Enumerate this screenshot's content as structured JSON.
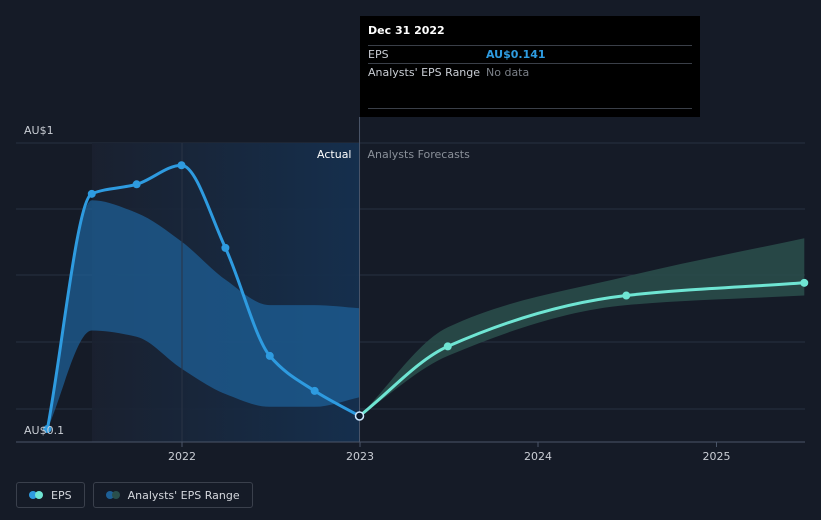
{
  "chart_data": {
    "type": "line",
    "y_axis": {
      "top_label": "AU$1",
      "bottom_label": "AU$0.1"
    },
    "x_ticks": [
      "2022",
      "2023",
      "2024",
      "2025"
    ],
    "sections": {
      "actual": "Actual",
      "forecast": "Analysts Forecasts"
    },
    "series": [
      {
        "name": "EPS",
        "kind": "actual",
        "color": "#2e9be0",
        "points": [
          {
            "x": "2021-03-31",
            "y": 0.1
          },
          {
            "x": "2021-06-30",
            "y": 0.84
          },
          {
            "x": "2021-09-30",
            "y": 0.87
          },
          {
            "x": "2021-12-31",
            "y": 0.93
          },
          {
            "x": "2022-03-31",
            "y": 0.67
          },
          {
            "x": "2022-06-30",
            "y": 0.33
          },
          {
            "x": "2022-09-30",
            "y": 0.22
          },
          {
            "x": "2022-12-31",
            "y": 0.141
          }
        ],
        "range_band": [
          {
            "x": "2021-03-31",
            "low": 0.1,
            "high": 0.1
          },
          {
            "x": "2021-06-30",
            "low": 0.41,
            "high": 0.82
          },
          {
            "x": "2021-09-30",
            "low": 0.39,
            "high": 0.78
          },
          {
            "x": "2021-12-31",
            "low": 0.29,
            "high": 0.69
          },
          {
            "x": "2022-03-31",
            "low": 0.21,
            "high": 0.57
          },
          {
            "x": "2022-06-30",
            "low": 0.17,
            "high": 0.49
          },
          {
            "x": "2022-09-30",
            "low": 0.17,
            "high": 0.49
          },
          {
            "x": "2022-12-31",
            "low": 0.2,
            "high": 0.48
          }
        ]
      },
      {
        "name": "EPS",
        "kind": "forecast",
        "color": "#6fe5d3",
        "points": [
          {
            "x": "2022-12-31",
            "y": 0.141
          },
          {
            "x": "2023-06-30",
            "y": 0.36
          },
          {
            "x": "2024-06-30",
            "y": 0.52
          },
          {
            "x": "2025-06-30",
            "y": 0.56
          }
        ],
        "range_band": [
          {
            "x": "2022-12-31",
            "low": 0.141,
            "high": 0.141
          },
          {
            "x": "2023-06-30",
            "low": 0.33,
            "high": 0.42
          },
          {
            "x": "2024-06-30",
            "low": 0.49,
            "high": 0.58
          },
          {
            "x": "2025-06-30",
            "low": 0.52,
            "high": 0.7
          }
        ]
      }
    ],
    "legend": [
      "EPS",
      "Analysts' EPS Range"
    ]
  },
  "tooltip": {
    "date": "Dec 31 2022",
    "eps_label": "EPS",
    "eps_value": "AU$0.141",
    "range_label": "Analysts' EPS Range",
    "range_value": "No data"
  },
  "legend": {
    "eps_label": "EPS",
    "range_label": "Analysts' EPS Range"
  },
  "colors": {
    "background": "#151b27",
    "actual": "#2e9be0",
    "forecast": "#6fe5d3",
    "forecast_band": "#2a4f4c"
  }
}
